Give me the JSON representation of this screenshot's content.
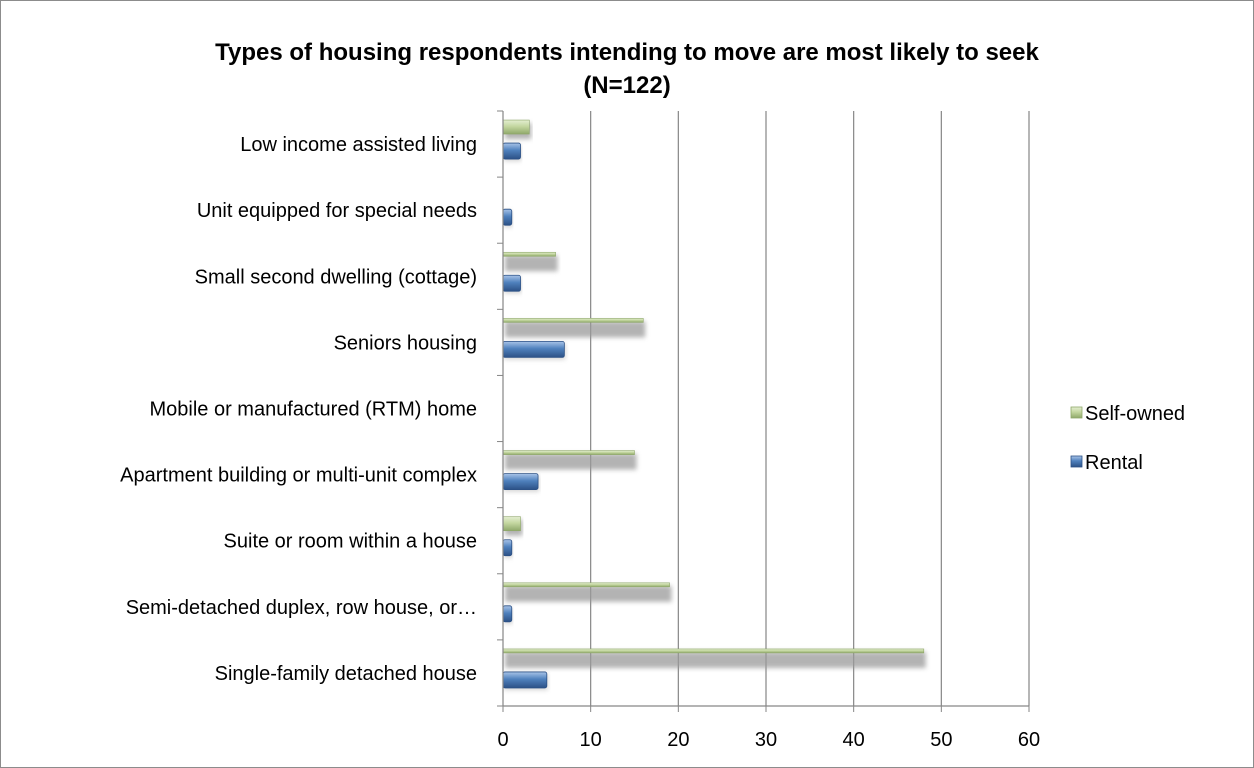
{
  "chart_data": {
    "type": "bar",
    "orientation": "horizontal",
    "title": "Types of housing respondents intending to move are most likely to seek",
    "subtitle": "(N=122)",
    "categories": [
      "Single-family detached house",
      "Semi-detached duplex, row house, or…",
      "Suite or room within a house",
      "Apartment building or multi-unit complex",
      "Mobile or manufactured (RTM) home",
      "Seniors housing",
      "Small second dwelling (cottage)",
      "Unit equipped for special needs",
      "Low income assisted living"
    ],
    "series": [
      {
        "name": "Self-owned",
        "values": [
          48,
          19,
          2,
          15,
          0,
          16,
          6,
          0,
          3
        ],
        "color": "#c4d7a0"
      },
      {
        "name": "Rental",
        "values": [
          5,
          1,
          1,
          4,
          0,
          7,
          2,
          1,
          2
        ],
        "color": "#4f81bd"
      }
    ],
    "xlim": [
      0,
      60
    ],
    "xticks": [
      "0",
      "10",
      "20",
      "30",
      "40",
      "50",
      "60"
    ],
    "grid": "vertical",
    "legend": "right"
  }
}
